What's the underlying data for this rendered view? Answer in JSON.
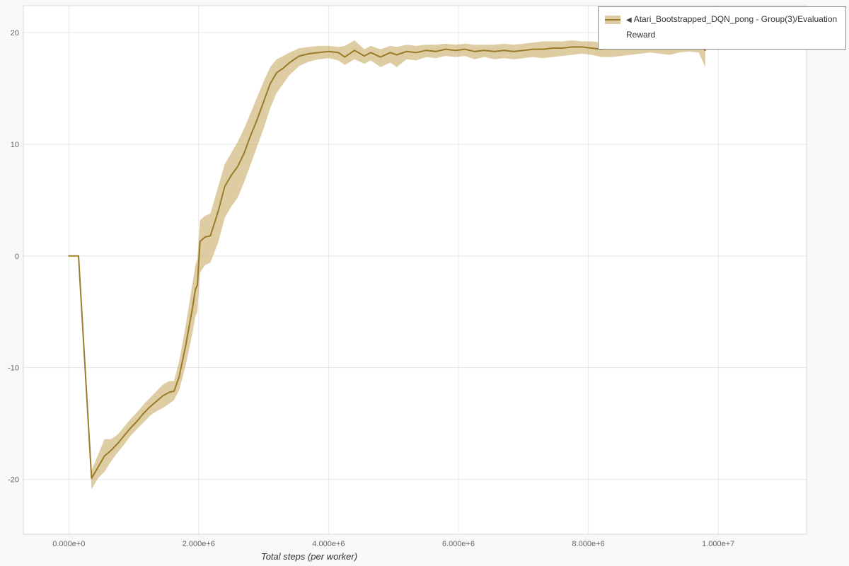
{
  "legend": {
    "collapse_icon": "◀",
    "label": "Atari_Bootstrapped_DQN_pong - Group(3)/Evaluation Reward"
  },
  "colors": {
    "page_bg": "#f7f8f8",
    "plot_bg": "#ffffff",
    "grid": "#e7e7e7",
    "frame": "#d9d9d9",
    "tick_text": "#666666",
    "axis_title": "#333333",
    "line": "#9a7b28",
    "band": "#c2a357",
    "band_solid": "#decca3",
    "legend_bg": "#ffffff",
    "legend_border": "#8c8c8c",
    "legend_text": "#333333"
  },
  "chart_data": {
    "type": "line",
    "title": "",
    "xlabel": "Total steps (per worker)",
    "ylabel": "",
    "grid": true,
    "legend_position": "top-right-outside",
    "xlim": [
      -700000,
      11360000
    ],
    "ylim": [
      -24.9,
      22.4
    ],
    "x_tick_values": [
      0,
      2000000,
      4000000,
      6000000,
      8000000,
      10000000
    ],
    "x_tick_labels": [
      "0.000e+0",
      "2.000e+6",
      "4.000e+6",
      "6.000e+6",
      "8.000e+6",
      "1.000e+7"
    ],
    "y_tick_values": [
      -20,
      -10,
      0,
      10,
      20
    ],
    "y_tick_labels": [
      "-20",
      "-10",
      "0",
      "10",
      "20"
    ],
    "series": [
      {
        "name": "Atari_Bootstrapped_DQN_pong - Group(3)/Evaluation Reward",
        "line_color": "#9a7b28",
        "band_color": "#c2a357",
        "band_opacity": 0.55,
        "line_width": 2,
        "x": [
          0,
          150000,
          350000,
          450000,
          550000,
          650000,
          750000,
          850000,
          950000,
          1050000,
          1150000,
          1250000,
          1350000,
          1450000,
          1550000,
          1620000,
          1700000,
          1800000,
          1900000,
          1950000,
          1980000,
          2020000,
          2100000,
          2180000,
          2300000,
          2400000,
          2500000,
          2600000,
          2700000,
          2800000,
          2900000,
          3000000,
          3100000,
          3200000,
          3300000,
          3400000,
          3550000,
          3700000,
          3850000,
          4000000,
          4150000,
          4250000,
          4400000,
          4550000,
          4650000,
          4800000,
          4950000,
          5050000,
          5200000,
          5350000,
          5500000,
          5650000,
          5800000,
          5950000,
          6100000,
          6250000,
          6400000,
          6550000,
          6700000,
          6850000,
          7000000,
          7150000,
          7300000,
          7450000,
          7600000,
          7750000,
          7900000,
          8050000,
          8200000,
          8350000,
          8500000,
          8650000,
          8800000,
          8950000,
          9100000,
          9250000,
          9400000,
          9550000,
          9700000,
          9800000
        ],
        "mean": [
          0,
          0,
          -19.9,
          -18.9,
          -17.9,
          -17.4,
          -16.8,
          -16.1,
          -15.4,
          -14.8,
          -14.1,
          -13.5,
          -13.0,
          -12.5,
          -12.2,
          -12.1,
          -10.8,
          -8.0,
          -4.8,
          -3.0,
          -2.6,
          1.3,
          1.7,
          1.8,
          4.0,
          6.2,
          7.2,
          8.0,
          9.2,
          10.8,
          12.2,
          13.8,
          15.4,
          16.4,
          16.8,
          17.3,
          17.9,
          18.1,
          18.2,
          18.3,
          18.2,
          17.8,
          18.4,
          17.9,
          18.2,
          17.8,
          18.2,
          18.0,
          18.3,
          18.2,
          18.4,
          18.3,
          18.5,
          18.4,
          18.5,
          18.3,
          18.4,
          18.3,
          18.4,
          18.3,
          18.4,
          18.5,
          18.5,
          18.6,
          18.6,
          18.7,
          18.7,
          18.6,
          18.5,
          18.6,
          18.7,
          18.8,
          18.8,
          18.9,
          18.8,
          18.8,
          18.9,
          19.0,
          19.0,
          18.4
        ],
        "lower": [
          0,
          0,
          -20.9,
          -19.9,
          -19.3,
          -18.4,
          -17.6,
          -16.9,
          -16.1,
          -15.5,
          -14.9,
          -14.3,
          -13.9,
          -13.6,
          -13.2,
          -12.9,
          -12.0,
          -9.8,
          -7.0,
          -5.4,
          -5.0,
          -1.5,
          -0.8,
          -0.6,
          1.2,
          3.4,
          4.4,
          5.2,
          6.6,
          8.2,
          9.8,
          11.4,
          13.2,
          14.6,
          15.4,
          16.2,
          17.0,
          17.4,
          17.6,
          17.7,
          17.5,
          17.1,
          17.6,
          17.2,
          17.5,
          16.9,
          17.3,
          16.9,
          17.6,
          17.5,
          17.8,
          17.7,
          17.9,
          17.8,
          17.9,
          17.6,
          17.8,
          17.6,
          17.7,
          17.6,
          17.7,
          17.8,
          17.7,
          17.8,
          17.9,
          18.0,
          18.1,
          18.0,
          17.8,
          17.8,
          17.9,
          18.0,
          18.1,
          18.2,
          18.1,
          18.0,
          18.2,
          18.3,
          18.2,
          16.9
        ],
        "upper": [
          0,
          0,
          -19.2,
          -17.8,
          -16.4,
          -16.4,
          -16.0,
          -15.3,
          -14.6,
          -14.0,
          -13.3,
          -12.7,
          -12.1,
          -11.5,
          -11.2,
          -11.2,
          -9.4,
          -6.2,
          -2.6,
          -0.8,
          -0.3,
          3.2,
          3.6,
          3.8,
          6.2,
          8.2,
          9.2,
          10.2,
          11.4,
          12.8,
          14.2,
          15.6,
          16.9,
          17.6,
          17.9,
          18.2,
          18.6,
          18.7,
          18.8,
          18.8,
          18.7,
          18.8,
          19.3,
          18.5,
          18.8,
          18.5,
          18.8,
          18.7,
          18.9,
          18.8,
          18.9,
          18.9,
          19.0,
          18.9,
          19.0,
          18.9,
          18.9,
          18.9,
          19.0,
          18.9,
          19.0,
          19.1,
          19.2,
          19.2,
          19.2,
          19.3,
          19.2,
          19.2,
          19.1,
          19.3,
          19.4,
          19.4,
          19.4,
          19.5,
          19.4,
          19.4,
          19.5,
          19.5,
          19.5,
          19.3
        ]
      }
    ]
  }
}
